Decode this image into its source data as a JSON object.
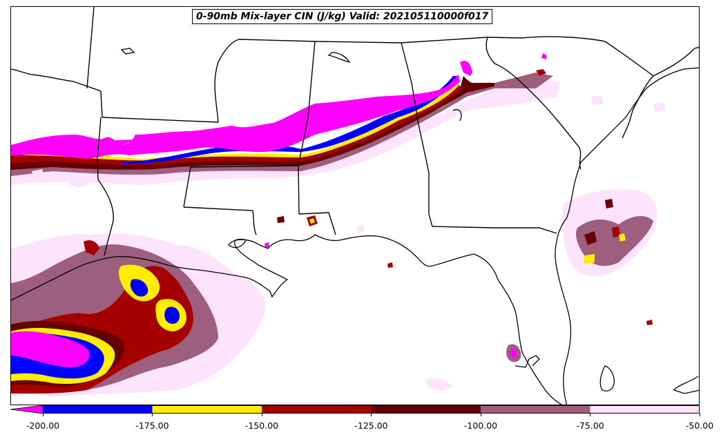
{
  "title": "0-90mb Mix-layer CIN (J/kg) Valid: 202105110000f017",
  "colorbar": {
    "extend": "min",
    "levels": [
      {
        "from": -200,
        "to": -175,
        "color": "#0000ff"
      },
      {
        "from": -175,
        "to": -150,
        "color": "#ffee00"
      },
      {
        "from": -150,
        "to": -125,
        "color": "#a50000"
      },
      {
        "from": -125,
        "to": -100,
        "color": "#640000"
      },
      {
        "from": -100,
        "to": -75,
        "color": "#9e5f7e"
      },
      {
        "from": -75,
        "to": -50,
        "color": "#fde3fb"
      }
    ],
    "under_color": "#ff00ff",
    "tick_labels": [
      "-200.00",
      "-175.00",
      "-150.00",
      "-125.00",
      "-100.00",
      "-75.00",
      "-50.00"
    ]
  },
  "colors": {
    "magenta": "#ff00ff",
    "blue": "#0000ff",
    "yellow": "#ffee00",
    "red": "#a50000",
    "darkred": "#640000",
    "mauve": "#9e5f7e",
    "pink": "#fde3fb"
  }
}
